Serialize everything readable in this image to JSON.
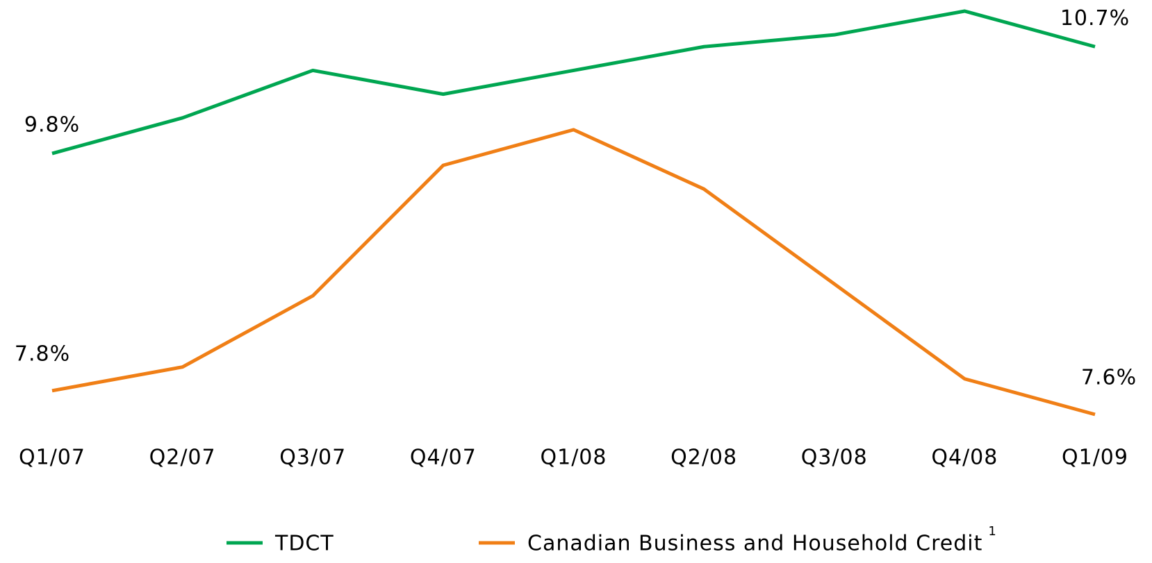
{
  "chart_data": {
    "type": "line",
    "categories": [
      "Q1/07",
      "Q2/07",
      "Q3/07",
      "Q4/07",
      "Q1/08",
      "Q2/08",
      "Q3/08",
      "Q4/08",
      "Q1/09"
    ],
    "series": [
      {
        "name": "TDCT",
        "color": "#00a651",
        "values": [
          9.8,
          10.1,
          10.5,
          10.3,
          10.5,
          10.7,
          10.8,
          11.0,
          10.7
        ],
        "value_labels": [
          "9.8%",
          null,
          null,
          null,
          null,
          null,
          null,
          null,
          "10.7%"
        ]
      },
      {
        "name": "Canadian Business and Household Credit",
        "color": "#f07f16",
        "footnote": "1",
        "values": [
          7.8,
          8.0,
          8.6,
          9.7,
          10.0,
          9.5,
          8.7,
          7.9,
          7.6
        ],
        "value_labels": [
          "7.8%",
          null,
          null,
          null,
          null,
          null,
          null,
          null,
          "7.6%"
        ]
      }
    ],
    "legend": "bottom"
  }
}
